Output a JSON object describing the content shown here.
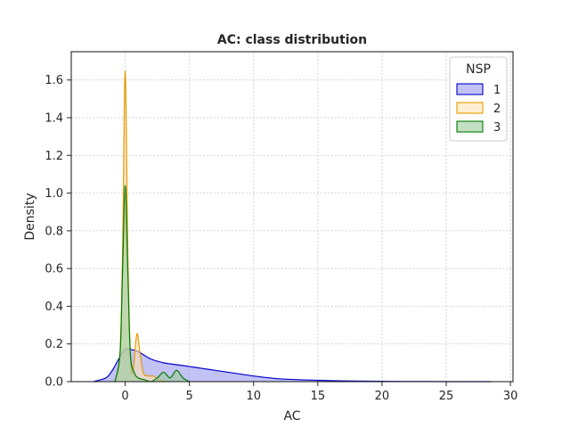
{
  "chart_data": {
    "type": "area",
    "title": "AC: class distribution",
    "xlabel": "AC",
    "ylabel": "Density",
    "xlim": [
      -4.2,
      30.2
    ],
    "ylim": [
      0,
      1.75
    ],
    "xticks": [
      0,
      5,
      10,
      15,
      20,
      25,
      30
    ],
    "yticks": [
      0.0,
      0.2,
      0.4,
      0.6,
      0.8,
      1.0,
      1.2,
      1.4,
      1.6
    ],
    "grid": true,
    "legend": {
      "title": "NSP",
      "position": "top-right"
    },
    "series": [
      {
        "name": "1",
        "color": "#0000cc",
        "fill": "#9999ee",
        "x": [
          -2.5,
          -1.5,
          -1.0,
          -0.5,
          0.0,
          0.5,
          1.0,
          2.0,
          3.0,
          4.0,
          5.0,
          6.0,
          7.0,
          8.0,
          10.0,
          12.0,
          15.0,
          18.0,
          22.0,
          26.0,
          28.5
        ],
        "y": [
          0.0,
          0.02,
          0.06,
          0.12,
          0.17,
          0.17,
          0.16,
          0.12,
          0.1,
          0.09,
          0.08,
          0.07,
          0.06,
          0.05,
          0.03,
          0.015,
          0.007,
          0.003,
          0.001,
          0.0,
          0.0
        ]
      },
      {
        "name": "2",
        "color": "#e69a00",
        "fill": "#fde3b3",
        "x": [
          -0.8,
          -0.4,
          -0.2,
          0.0,
          0.2,
          0.4,
          0.6,
          0.9,
          1.1,
          1.4,
          1.8,
          2.2,
          2.6,
          3.2
        ],
        "y": [
          0.0,
          0.15,
          0.7,
          1.65,
          0.7,
          0.15,
          0.05,
          0.25,
          0.18,
          0.05,
          0.03,
          0.03,
          0.01,
          0.0
        ]
      },
      {
        "name": "3",
        "color": "#007a00",
        "fill": "#99cc99",
        "x": [
          -0.8,
          -0.4,
          -0.2,
          0.0,
          0.2,
          0.4,
          0.7,
          1.0,
          1.5,
          2.0,
          2.5,
          3.0,
          3.5,
          4.0,
          4.5,
          5.0
        ],
        "y": [
          0.0,
          0.15,
          0.6,
          1.04,
          0.6,
          0.15,
          0.05,
          0.02,
          0.01,
          0.0,
          0.02,
          0.05,
          0.02,
          0.06,
          0.02,
          0.0
        ]
      }
    ]
  }
}
